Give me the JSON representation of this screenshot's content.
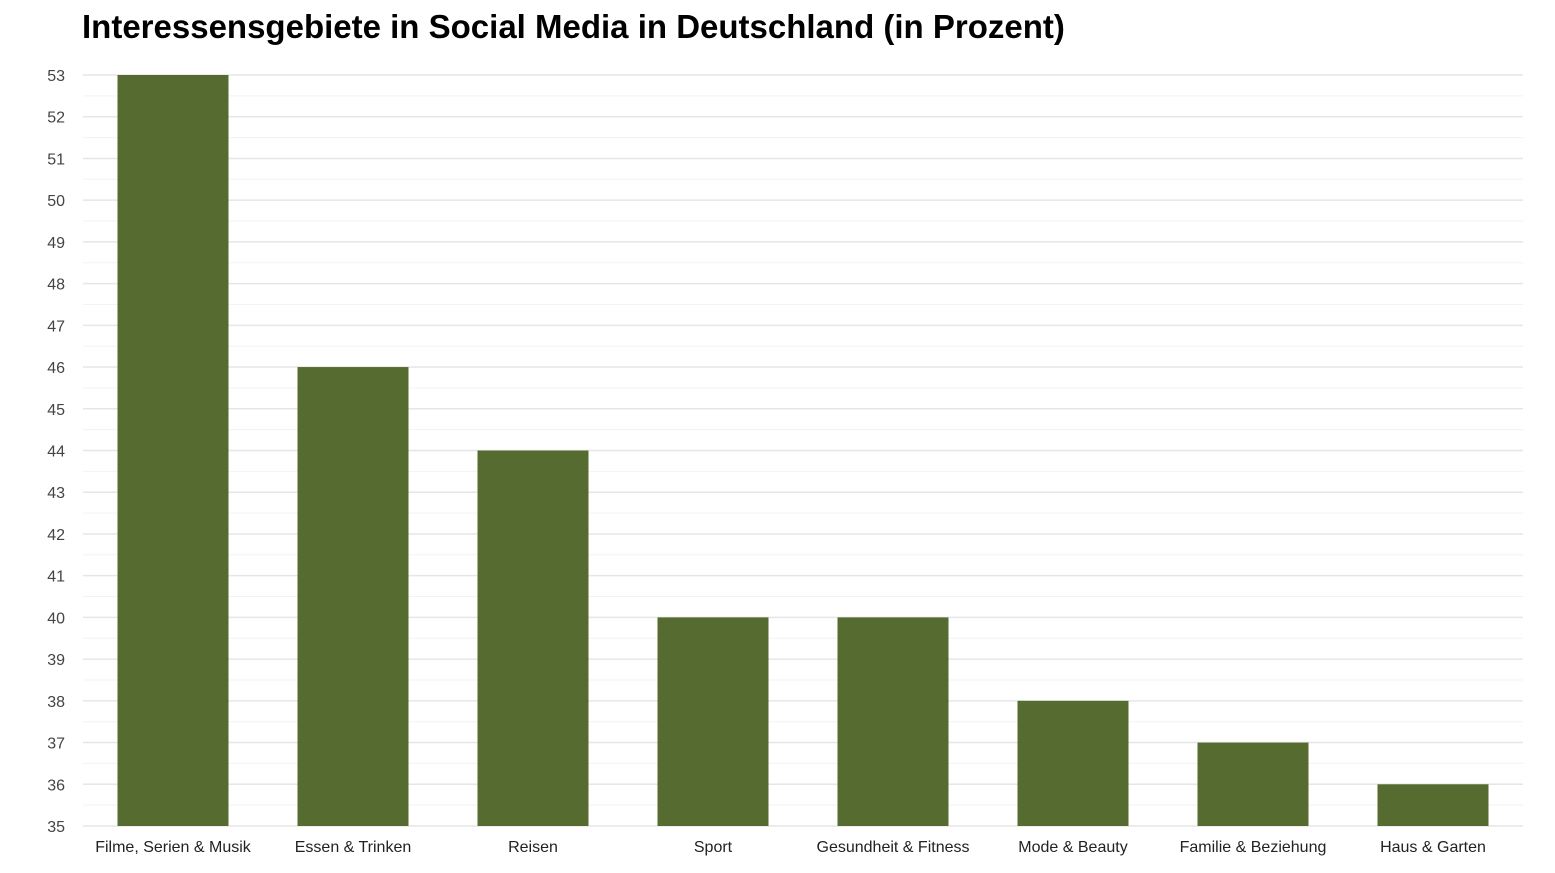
{
  "chart_data": {
    "type": "bar",
    "title": "Interessensgebiete in Social Media in Deutschland (in Prozent)",
    "xlabel": "",
    "ylabel": "",
    "categories": [
      "Filme, Serien & Musik",
      "Essen & Trinken",
      "Reisen",
      "Sport",
      "Gesundheit & Fitness",
      "Mode & Beauty",
      "Familie & Beziehung",
      "Haus & Garten"
    ],
    "values": [
      53,
      46,
      44,
      40,
      40,
      38,
      37,
      36
    ],
    "ylim": [
      35,
      53
    ],
    "yticks": [
      35,
      36,
      37,
      38,
      39,
      40,
      41,
      42,
      43,
      44,
      45,
      46,
      47,
      48,
      49,
      50,
      51,
      52,
      53
    ],
    "grid": true,
    "legend": "none",
    "colors": {
      "bar": "#556b2f",
      "grid_major": "#e6e6e6",
      "grid_minor": "#f3f3f3"
    }
  }
}
